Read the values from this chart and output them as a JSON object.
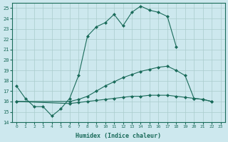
{
  "xlabel": "Humidex (Indice chaleur)",
  "bg_color": "#cde8ee",
  "grid_color": "#b0d4dc",
  "line_color": "#1a6b5a",
  "xlim": [
    -0.5,
    23.5
  ],
  "ylim": [
    14,
    25.5
  ],
  "xticks": [
    0,
    1,
    2,
    3,
    4,
    5,
    6,
    7,
    8,
    9,
    10,
    11,
    12,
    13,
    14,
    15,
    16,
    17,
    18,
    19,
    20,
    21,
    22,
    23
  ],
  "yticks": [
    14,
    15,
    16,
    17,
    18,
    19,
    20,
    21,
    22,
    23,
    24,
    25
  ],
  "line1_x": [
    0,
    1,
    2,
    3,
    4,
    5,
    6,
    7,
    8,
    9,
    10,
    11,
    12,
    13,
    14,
    15,
    16,
    17,
    18
  ],
  "line1_y": [
    17.5,
    16.3,
    15.5,
    15.5,
    14.6,
    15.3,
    16.3,
    18.5,
    22.3,
    23.2,
    23.6,
    24.4,
    23.3,
    24.6,
    25.2,
    24.8,
    24.6,
    24.2,
    21.3
  ],
  "line2_x": [
    0,
    6,
    7,
    8,
    9,
    10,
    11,
    12,
    13,
    14,
    15,
    16,
    17,
    18,
    19,
    20,
    21,
    22
  ],
  "line2_y": [
    16.0,
    16.0,
    16.2,
    16.5,
    17.0,
    17.5,
    17.9,
    18.3,
    18.6,
    18.9,
    19.1,
    19.3,
    19.4,
    19.0,
    18.5,
    16.3,
    16.2,
    16.0
  ],
  "line3_x": [
    0,
    6,
    7,
    8,
    9,
    10,
    11,
    12,
    13,
    14,
    15,
    16,
    17,
    18,
    19,
    20,
    21,
    22
  ],
  "line3_y": [
    16.0,
    15.8,
    15.9,
    16.0,
    16.1,
    16.2,
    16.3,
    16.4,
    16.5,
    16.5,
    16.6,
    16.6,
    16.6,
    16.5,
    16.4,
    16.3,
    16.2,
    16.0
  ]
}
